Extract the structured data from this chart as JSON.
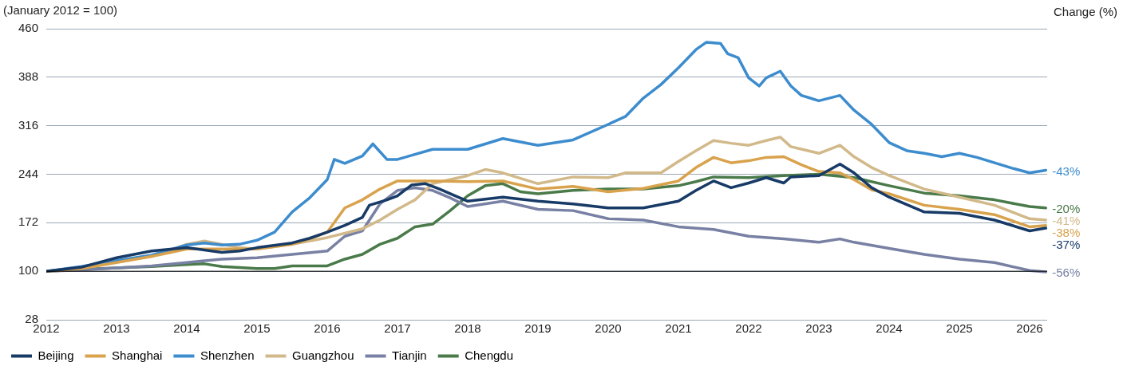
{
  "chart_data": {
    "type": "line",
    "ylabel": "(January 2012 = 100)",
    "xlim": [
      2012,
      2026.25
    ],
    "xticks": [
      2012,
      2013,
      2014,
      2015,
      2016,
      2017,
      2018,
      2019,
      2020,
      2021,
      2022,
      2023,
      2024,
      2025,
      2026
    ],
    "ylim": [
      28,
      460
    ],
    "yticks": [
      28,
      100,
      172,
      244,
      316,
      388,
      460
    ],
    "grid": "y",
    "legend": "bottom",
    "marker": "none",
    "line_style": "solid",
    "ref_lines": [
      {
        "axis": "y",
        "value": 100,
        "color": "#000000"
      }
    ],
    "series": [
      {
        "name": "Beijing",
        "color": "#173a66",
        "x": [
          2012,
          2012.5,
          2013,
          2013.5,
          2014,
          2014.5,
          2014.75,
          2015,
          2015.5,
          2015.75,
          2016,
          2016.25,
          2016.5,
          2016.6,
          2016.85,
          2017,
          2017.2,
          2017.4,
          2017.6,
          2018,
          2018.5,
          2019,
          2019.5,
          2020,
          2020.5,
          2021,
          2021.25,
          2021.5,
          2021.75,
          2022,
          2022.25,
          2022.5,
          2022.6,
          2023,
          2023.3,
          2023.5,
          2023.75,
          2024,
          2024.5,
          2025,
          2025.5,
          2026,
          2026.23
        ],
        "values": [
          100,
          106,
          120,
          130,
          135,
          128,
          130,
          135,
          142,
          149,
          158,
          168,
          180,
          198,
          206,
          212,
          228,
          230,
          222,
          204,
          210,
          204,
          200,
          194,
          194,
          204,
          220,
          234,
          224,
          231,
          239,
          231,
          240,
          242,
          259,
          246,
          224,
          210,
          188,
          186,
          176,
          160,
          164
        ]
      },
      {
        "name": "Shanghai",
        "color": "#d9a24c",
        "x": [
          2012,
          2012.5,
          2013,
          2013.5,
          2014,
          2014.5,
          2015,
          2015.5,
          2015.75,
          2016,
          2016.25,
          2016.5,
          2016.75,
          2017,
          2017.5,
          2018,
          2018.5,
          2019,
          2019.5,
          2020,
          2020.5,
          2021,
          2021.25,
          2021.5,
          2021.75,
          2022,
          2022.25,
          2022.5,
          2022.75,
          2023,
          2023.3,
          2023.5,
          2023.75,
          2024,
          2024.5,
          2025,
          2025.5,
          2026,
          2026.23
        ],
        "values": [
          100,
          104,
          113,
          122,
          133,
          133,
          133,
          140,
          148,
          158,
          194,
          206,
          222,
          234,
          234,
          233,
          234,
          222,
          226,
          218,
          223,
          234,
          254,
          269,
          261,
          264,
          269,
          270,
          258,
          248,
          246,
          236,
          221,
          215,
          198,
          192,
          184,
          166,
          168
        ]
      },
      {
        "name": "Shenzhen",
        "color": "#3d8cce",
        "x": [
          2012,
          2012.5,
          2013,
          2013.5,
          2014,
          2014.25,
          2014.5,
          2014.75,
          2015,
          2015.25,
          2015.5,
          2015.75,
          2016,
          2016.1,
          2016.25,
          2016.5,
          2016.65,
          2016.85,
          2017,
          2017.5,
          2018,
          2018.5,
          2019,
          2019.5,
          2020,
          2020.25,
          2020.5,
          2020.75,
          2021,
          2021.25,
          2021.4,
          2021.6,
          2021.7,
          2021.85,
          2022,
          2022.15,
          2022.25,
          2022.45,
          2022.6,
          2022.75,
          2023,
          2023.3,
          2023.5,
          2023.75,
          2024,
          2024.25,
          2024.5,
          2024.75,
          2025,
          2025.25,
          2025.5,
          2025.75,
          2026,
          2026.23
        ],
        "values": [
          100,
          107,
          116,
          124,
          139,
          142,
          139,
          140,
          146,
          158,
          188,
          209,
          236,
          266,
          260,
          271,
          289,
          266,
          266,
          281,
          281,
          297,
          287,
          295,
          318,
          330,
          357,
          377,
          402,
          429,
          440,
          438,
          423,
          417,
          387,
          375,
          387,
          397,
          375,
          361,
          353,
          361,
          339,
          318,
          291,
          279,
          275,
          270,
          275,
          269,
          261,
          253,
          246,
          250
        ]
      },
      {
        "name": "Guangzhou",
        "color": "#d2b98a",
        "x": [
          2012,
          2012.5,
          2013,
          2013.5,
          2014,
          2014.25,
          2014.5,
          2014.75,
          2015,
          2015.5,
          2016,
          2016.5,
          2016.75,
          2017,
          2017.25,
          2017.5,
          2018,
          2018.25,
          2018.5,
          2019,
          2019.5,
          2020,
          2020.25,
          2020.75,
          2021,
          2021.25,
          2021.5,
          2021.75,
          2022,
          2022.25,
          2022.45,
          2022.6,
          2023,
          2023.3,
          2023.5,
          2023.75,
          2024,
          2024.5,
          2025,
          2025.5,
          2026,
          2026.23
        ],
        "values": [
          100,
          105,
          114,
          122,
          140,
          145,
          140,
          135,
          133,
          140,
          150,
          163,
          176,
          192,
          206,
          230,
          242,
          251,
          246,
          230,
          240,
          239,
          246,
          246,
          263,
          279,
          294,
          290,
          287,
          294,
          299,
          285,
          275,
          287,
          270,
          254,
          242,
          222,
          210,
          198,
          178,
          176
        ]
      },
      {
        "name": "Tianjin",
        "color": "#7880a3",
        "x": [
          2012,
          2012.5,
          2013,
          2013.5,
          2014,
          2014.5,
          2015,
          2015.5,
          2016,
          2016.25,
          2016.5,
          2016.75,
          2017,
          2017.25,
          2017.5,
          2017.75,
          2018,
          2018.5,
          2019,
          2019.5,
          2020,
          2020.5,
          2021,
          2021.5,
          2022,
          2022.5,
          2023,
          2023.3,
          2023.5,
          2024,
          2024.5,
          2025,
          2025.5,
          2026,
          2026.23
        ],
        "values": [
          100,
          102,
          105,
          108,
          113,
          118,
          120,
          125,
          130,
          152,
          160,
          200,
          220,
          224,
          220,
          209,
          196,
          204,
          192,
          190,
          178,
          176,
          166,
          162,
          152,
          148,
          143,
          148,
          143,
          134,
          125,
          118,
          113,
          101,
          99
        ]
      },
      {
        "name": "Chengdu",
        "color": "#4a7a4a",
        "x": [
          2012,
          2012.5,
          2013,
          2013.5,
          2014,
          2014.25,
          2014.5,
          2015,
          2015.25,
          2015.5,
          2016,
          2016.25,
          2016.5,
          2016.75,
          2017,
          2017.25,
          2017.5,
          2017.75,
          2018,
          2018.25,
          2018.5,
          2018.75,
          2019,
          2019.5,
          2020,
          2020.5,
          2021,
          2021.25,
          2021.5,
          2022,
          2022.5,
          2023,
          2023.5,
          2024,
          2024.5,
          2025,
          2025.5,
          2026,
          2026.23
        ],
        "values": [
          100,
          103,
          105,
          107,
          110,
          111,
          107,
          104,
          104,
          108,
          108,
          118,
          125,
          140,
          149,
          166,
          170,
          190,
          212,
          227,
          230,
          218,
          215,
          220,
          222,
          222,
          227,
          233,
          240,
          239,
          242,
          244,
          239,
          227,
          216,
          212,
          206,
          196,
          194
        ]
      }
    ],
    "annotations": [
      "Change (%)",
      "-37%",
      "-38%",
      "-43%",
      "-41%",
      "-56%",
      "-20%"
    ]
  }
}
